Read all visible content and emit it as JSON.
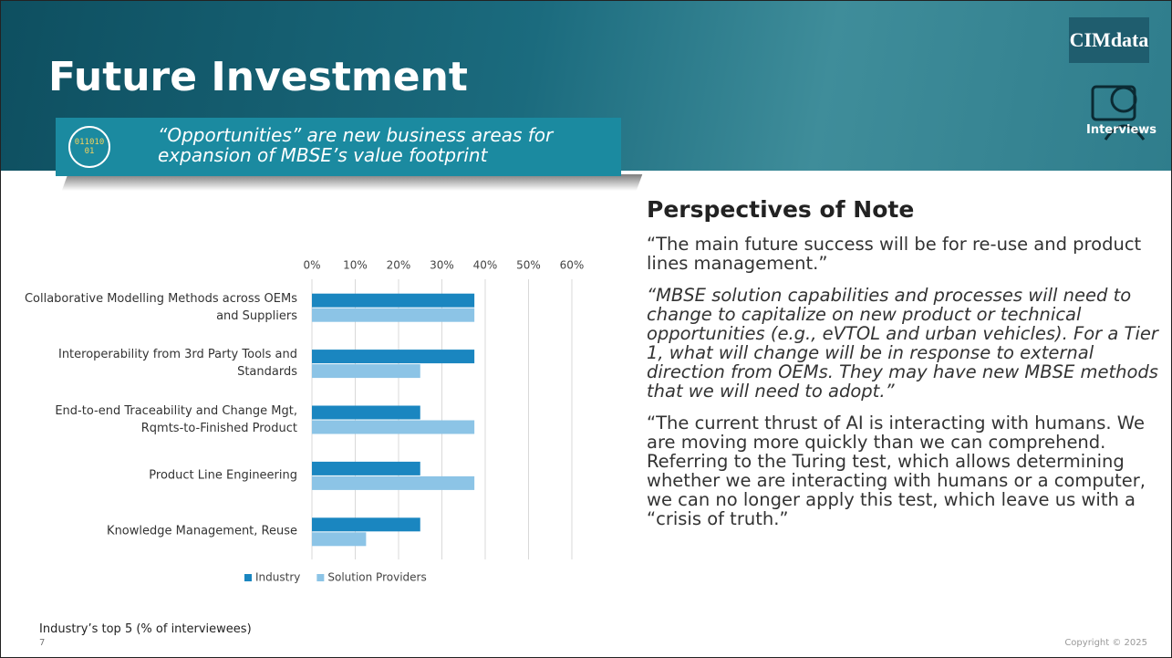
{
  "header": {
    "title": "Future Investment",
    "logo": "CIMdata",
    "badge": "Interviews"
  },
  "callout": {
    "icon": "01101001",
    "text": "“Opportunities” are new business areas for expansion of MBSE’s value footprint"
  },
  "chart_data": {
    "type": "hbar",
    "categories": [
      "Collaborative Modelling Methods across OEMs and Suppliers",
      "Interoperability from 3rd Party Tools and Standards",
      "End-to-end Traceability and Change Mgt, Rqmts-to-Finished Product",
      "Product Line Engineering",
      "Knowledge Management, Reuse"
    ],
    "series": [
      {
        "name": "Industry",
        "color": "#1a86c0",
        "values": [
          37.5,
          37.5,
          25,
          25,
          25
        ]
      },
      {
        "name": "Solution Providers",
        "color": "#8cc4e6",
        "values": [
          37.5,
          25,
          37.5,
          37.5,
          12.5
        ]
      }
    ],
    "xlim": [
      0,
      60
    ],
    "xticks": [
      {
        "value": 0,
        "label": "0%"
      },
      {
        "value": 10,
        "label": "10%"
      },
      {
        "value": 20,
        "label": "20%"
      },
      {
        "value": 30,
        "label": "30%"
      },
      {
        "value": 40,
        "label": "40%"
      },
      {
        "value": 50,
        "label": "50%"
      },
      {
        "value": 60,
        "label": "60%"
      }
    ],
    "grid": true,
    "legend": "bottom",
    "caption": "Industry’s top 5 (% of interviewees)"
  },
  "perspectives": {
    "title": "Perspectives of Note",
    "quotes": [
      "“The main future success will be for re-use and product lines management.”",
      "“MBSE solution capabilities and processes will need to change to capitalize on new product or technical opportunities (e.g., eVTOL and urban vehicles). For a Tier 1, what will change will be in response to external direction from OEMs. They may have new MBSE methods that we will need to adopt.”",
      "“The current thrust of AI is interacting with humans. We are moving more quickly than we can comprehend. Referring to the Turing test, which allows determining whether we are interacting with humans or a computer, we can no longer apply this test, which leave us with a “crisis of truth.”"
    ]
  },
  "footer": {
    "page": "7",
    "copyright": "Copyright © 2025"
  }
}
